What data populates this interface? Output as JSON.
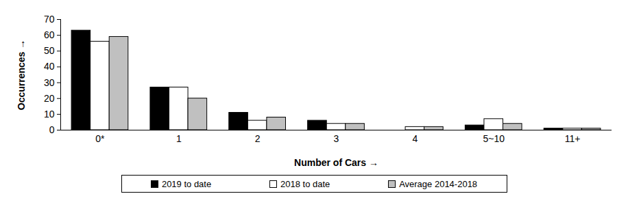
{
  "chart_data": {
    "type": "bar",
    "x_label": "Number of Cars",
    "y_label": "Occurrences",
    "categories": [
      "0*",
      "1",
      "2",
      "3",
      "4",
      "5~10",
      "11+"
    ],
    "series": [
      {
        "name": "2019 to date",
        "color": "#000000",
        "values": [
          63,
          27,
          11,
          6,
          0,
          3,
          1
        ]
      },
      {
        "name": "2018 to date",
        "color": "#ffffff",
        "values": [
          56,
          27,
          6,
          4,
          2,
          7,
          1
        ]
      },
      {
        "name": "Average 2014-2018",
        "color": "#c0c0c0",
        "values": [
          59,
          20,
          8,
          4,
          2,
          4,
          1
        ]
      }
    ],
    "ylim": [
      0,
      70
    ],
    "yticks": [
      0,
      10,
      20,
      30,
      40,
      50,
      60,
      70
    ],
    "grid": false,
    "legend": "bottom"
  }
}
